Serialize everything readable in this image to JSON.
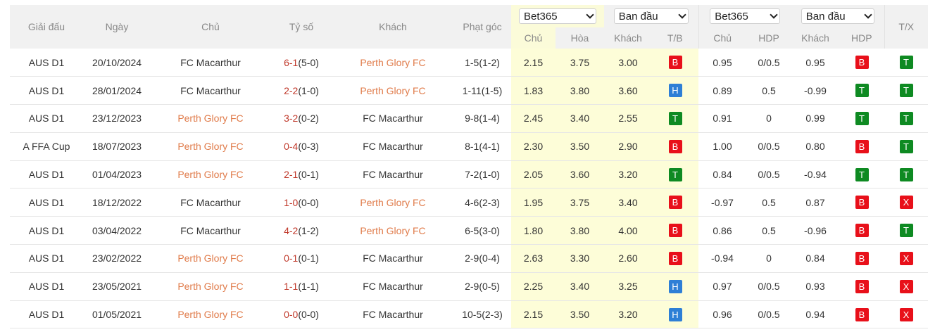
{
  "headers": {
    "league": "Giải đấu",
    "date": "Ngày",
    "home": "Chủ",
    "score": "Tỷ số",
    "away": "Khách",
    "corners": "Phạt góc",
    "tx": "T/X"
  },
  "group1": {
    "bookmaker": "Bet365",
    "type": "Ban đầu",
    "sub": [
      "Chủ",
      "Hòa",
      "Khách",
      "T/B"
    ]
  },
  "group2": {
    "bookmaker": "Bet365",
    "type": "Ban đầu",
    "sub": [
      "Chủ",
      "HDP",
      "Khách",
      "HDP"
    ]
  },
  "colors": {
    "win": "#0e8a22",
    "lose": "#e8101a",
    "draw": "#2e7fd6",
    "highlight": "#e07b4a"
  },
  "rows": [
    {
      "league": "AUS D1",
      "date": "20/10/2024",
      "home": "FC Macarthur",
      "home_hl": false,
      "score": "6-1",
      "half": "(5-0)",
      "away": "Perth Glory FC",
      "away_hl": true,
      "corners": "1-5(1-2)",
      "o1": "2.15",
      "o2": "3.75",
      "o3": "3.00",
      "tb": "B",
      "h1": "0.95",
      "hdp": "0/0.5",
      "h3": "0.95",
      "hr": "B",
      "tx": "T"
    },
    {
      "league": "AUS D1",
      "date": "28/01/2024",
      "home": "FC Macarthur",
      "home_hl": false,
      "score": "2-2",
      "half": "(1-0)",
      "away": "Perth Glory FC",
      "away_hl": true,
      "corners": "1-11(1-5)",
      "o1": "1.83",
      "o2": "3.80",
      "o3": "3.60",
      "tb": "H",
      "h1": "0.89",
      "hdp": "0.5",
      "h3": "-0.99",
      "hr": "T",
      "tx": "T"
    },
    {
      "league": "AUS D1",
      "date": "23/12/2023",
      "home": "Perth Glory FC",
      "home_hl": true,
      "score": "3-2",
      "half": "(0-2)",
      "away": "FC Macarthur",
      "away_hl": false,
      "corners": "9-8(1-4)",
      "o1": "2.45",
      "o2": "3.40",
      "o3": "2.55",
      "tb": "T",
      "h1": "0.91",
      "hdp": "0",
      "h3": "0.99",
      "hr": "T",
      "tx": "T"
    },
    {
      "league": "A FFA Cup",
      "date": "18/07/2023",
      "home": "Perth Glory FC",
      "home_hl": true,
      "score": "0-4",
      "half": "(0-3)",
      "away": "FC Macarthur",
      "away_hl": false,
      "corners": "8-1(4-1)",
      "o1": "2.30",
      "o2": "3.50",
      "o3": "2.90",
      "tb": "B",
      "h1": "1.00",
      "hdp": "0/0.5",
      "h3": "0.80",
      "hr": "B",
      "tx": "T"
    },
    {
      "league": "AUS D1",
      "date": "01/04/2023",
      "home": "Perth Glory FC",
      "home_hl": true,
      "score": "2-1",
      "half": "(0-1)",
      "away": "FC Macarthur",
      "away_hl": false,
      "corners": "7-2(1-0)",
      "o1": "2.05",
      "o2": "3.60",
      "o3": "3.20",
      "tb": "T",
      "h1": "0.84",
      "hdp": "0/0.5",
      "h3": "-0.94",
      "hr": "T",
      "tx": "T"
    },
    {
      "league": "AUS D1",
      "date": "18/12/2022",
      "home": "FC Macarthur",
      "home_hl": false,
      "score": "1-0",
      "half": "(0-0)",
      "away": "Perth Glory FC",
      "away_hl": true,
      "corners": "4-6(2-3)",
      "o1": "1.95",
      "o2": "3.75",
      "o3": "3.40",
      "tb": "B",
      "h1": "-0.97",
      "hdp": "0.5",
      "h3": "0.87",
      "hr": "B",
      "tx": "X"
    },
    {
      "league": "AUS D1",
      "date": "03/04/2022",
      "home": "FC Macarthur",
      "home_hl": false,
      "score": "4-2",
      "half": "(1-2)",
      "away": "Perth Glory FC",
      "away_hl": true,
      "corners": "6-5(3-0)",
      "o1": "1.80",
      "o2": "3.80",
      "o3": "4.00",
      "tb": "B",
      "h1": "0.86",
      "hdp": "0.5",
      "h3": "-0.96",
      "hr": "B",
      "tx": "T"
    },
    {
      "league": "AUS D1",
      "date": "23/02/2022",
      "home": "Perth Glory FC",
      "home_hl": true,
      "score": "0-1",
      "half": "(0-1)",
      "away": "FC Macarthur",
      "away_hl": false,
      "corners": "2-9(0-4)",
      "o1": "2.63",
      "o2": "3.30",
      "o3": "2.60",
      "tb": "B",
      "h1": "-0.94",
      "hdp": "0",
      "h3": "0.84",
      "hr": "B",
      "tx": "X"
    },
    {
      "league": "AUS D1",
      "date": "23/05/2021",
      "home": "Perth Glory FC",
      "home_hl": true,
      "score": "1-1",
      "half": "(1-1)",
      "away": "FC Macarthur",
      "away_hl": false,
      "corners": "2-9(0-5)",
      "o1": "2.25",
      "o2": "3.40",
      "o3": "3.25",
      "tb": "H",
      "h1": "0.97",
      "hdp": "0/0.5",
      "h3": "0.93",
      "hr": "B",
      "tx": "X"
    },
    {
      "league": "AUS D1",
      "date": "01/05/2021",
      "home": "Perth Glory FC",
      "home_hl": true,
      "score": "0-0",
      "half": "(0-0)",
      "away": "FC Macarthur",
      "away_hl": false,
      "corners": "10-5(2-3)",
      "o1": "2.15",
      "o2": "3.50",
      "o3": "3.20",
      "tb": "H",
      "h1": "0.96",
      "hdp": "0/0.5",
      "h3": "0.94",
      "hr": "B",
      "tx": "X"
    }
  ]
}
